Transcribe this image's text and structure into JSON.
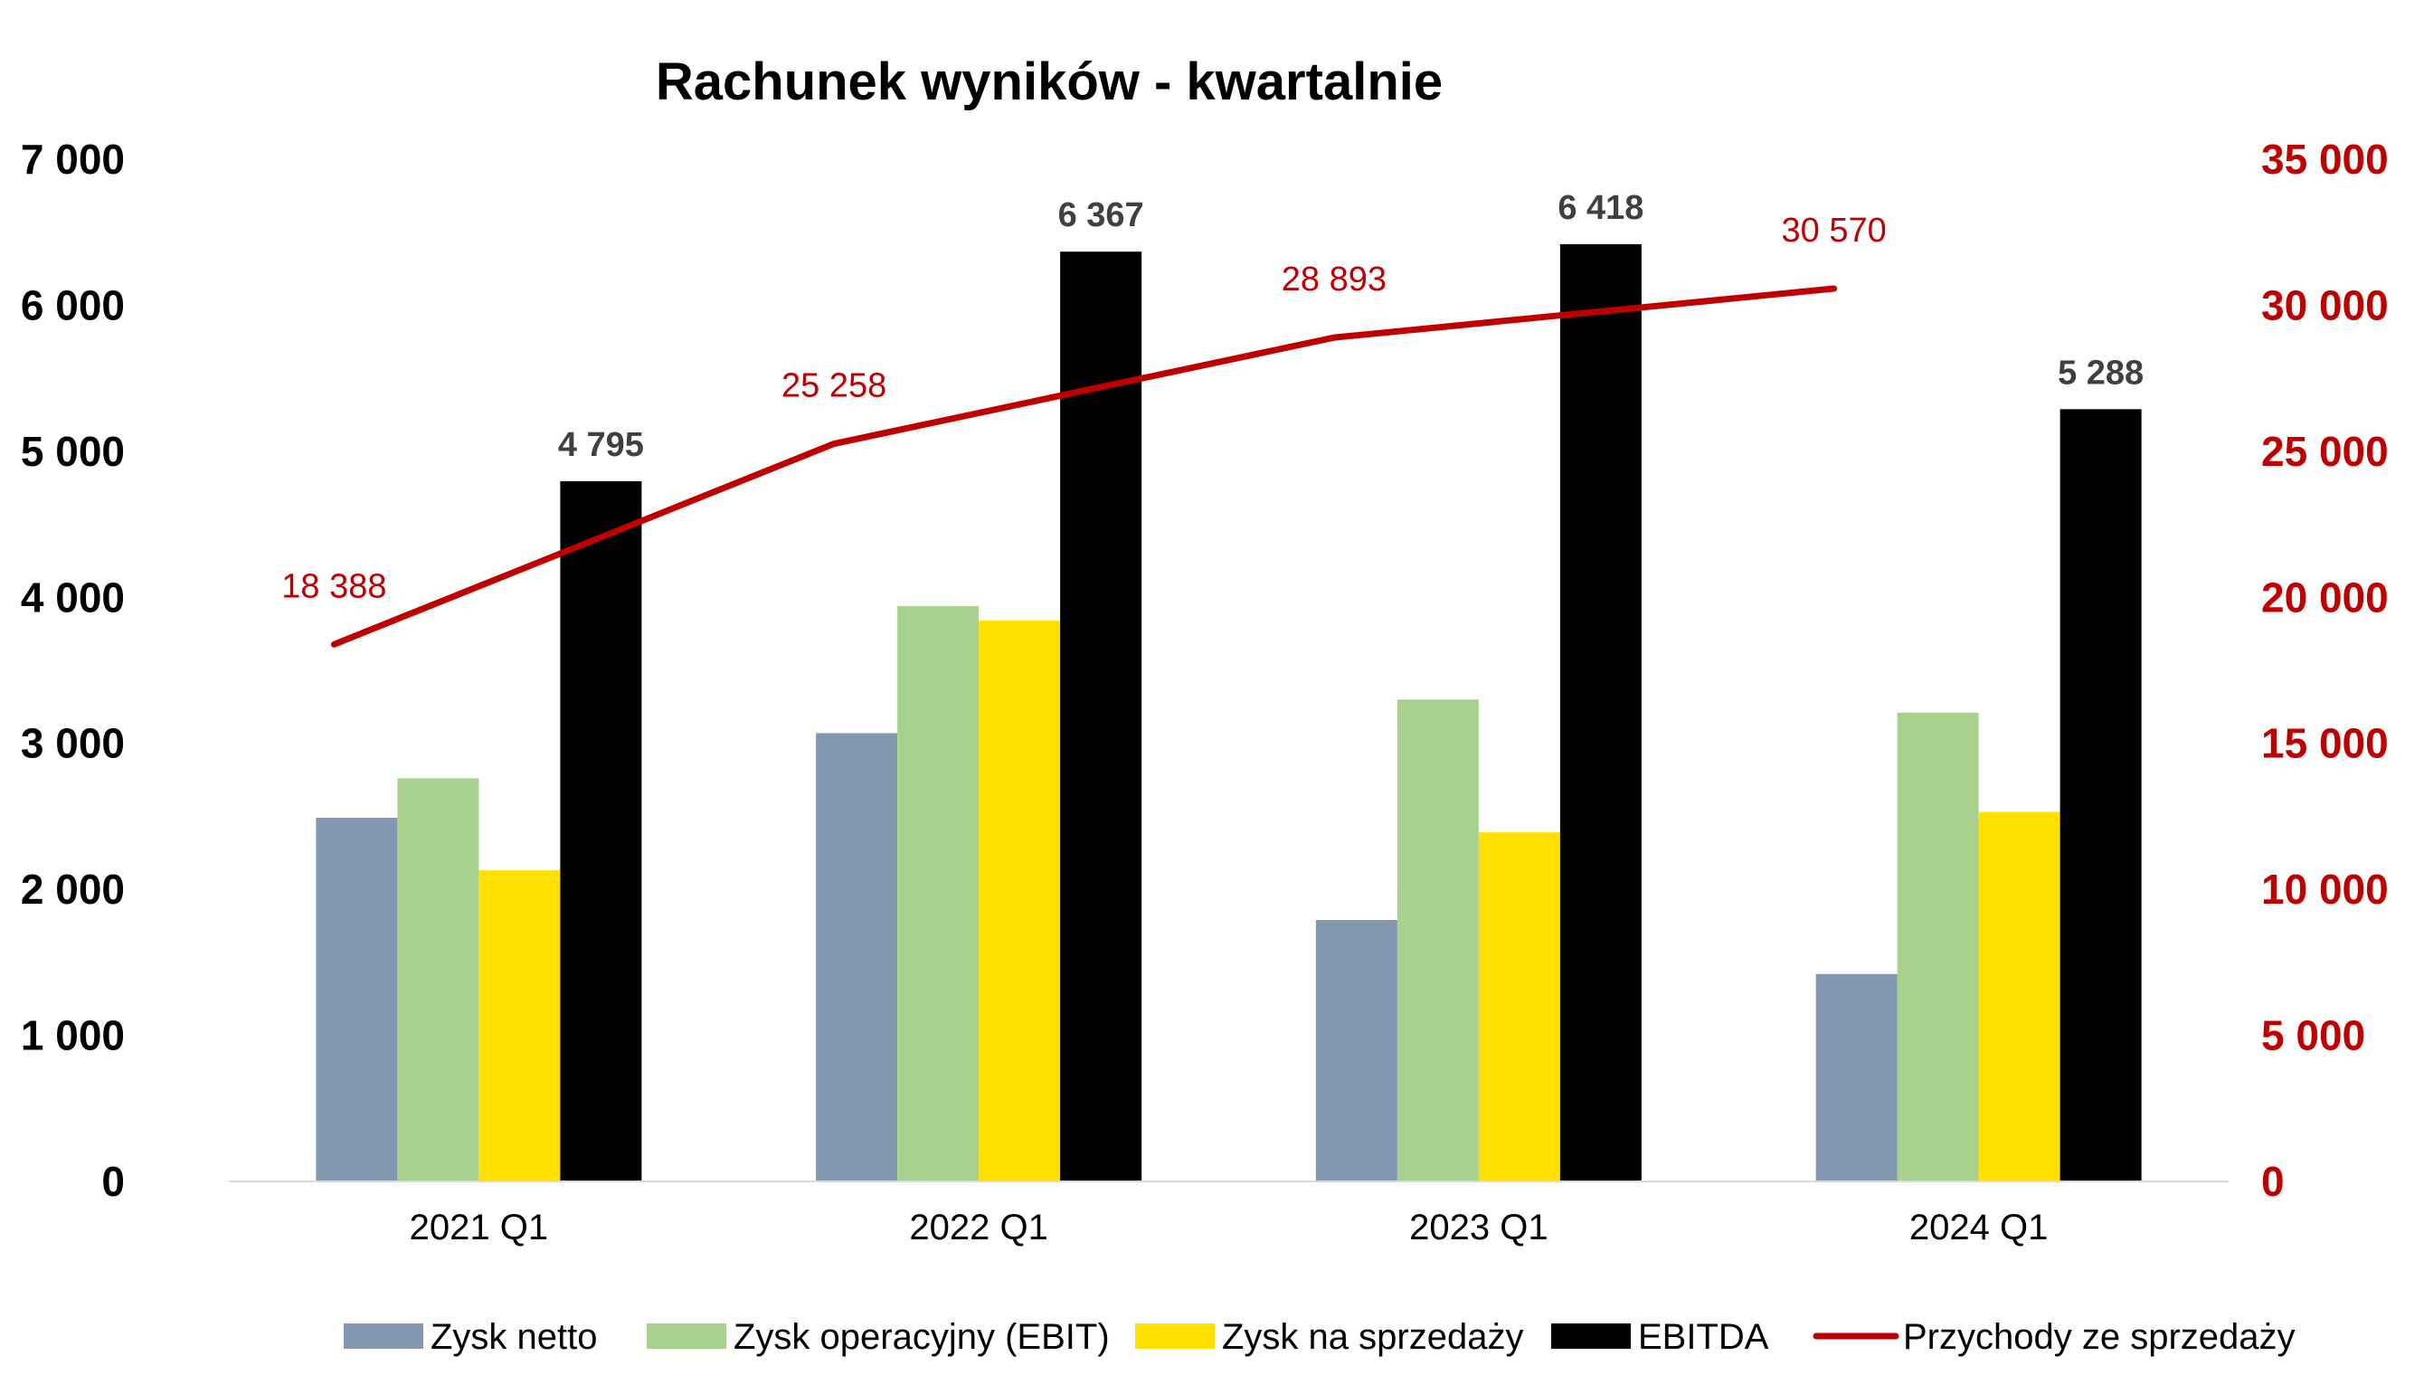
{
  "chart_data": {
    "type": "bar",
    "title": "Rachunek wyników - kwartalnie",
    "categories": [
      "2021 Q1",
      "2022 Q1",
      "2023 Q1",
      "2024 Q1"
    ],
    "y_left": {
      "range": [
        0,
        7000
      ],
      "ticks": [
        0,
        1000,
        2000,
        3000,
        4000,
        5000,
        6000,
        7000
      ],
      "tick_labels": [
        "0",
        "1 000",
        "2 000",
        "3 000",
        "4 000",
        "5 000",
        "6 000",
        "7 000"
      ],
      "color": "#000000"
    },
    "y_right": {
      "range": [
        0,
        35000
      ],
      "ticks": [
        0,
        5000,
        10000,
        15000,
        20000,
        25000,
        30000,
        35000
      ],
      "tick_labels": [
        "0",
        "5 000",
        "10 000",
        "15 000",
        "20 000",
        "25 000",
        "30 000",
        "35 000"
      ],
      "color": "#c00000"
    },
    "series": [
      {
        "name": "Zysk netto",
        "type": "bar",
        "axis": "left",
        "color": "#8497b0",
        "values": [
          2490,
          3070,
          1790,
          1420
        ]
      },
      {
        "name": "Zysk operacyjny (EBIT)",
        "type": "bar",
        "axis": "left",
        "color": "#a9d18e",
        "values": [
          2760,
          3940,
          3300,
          3210
        ]
      },
      {
        "name": "Zysk na sprzedaży",
        "type": "bar",
        "axis": "left",
        "color": "#ffe000",
        "values": [
          2130,
          3840,
          2390,
          2530
        ]
      },
      {
        "name": "EBITDA",
        "type": "bar",
        "axis": "left",
        "color": "#000000",
        "values": [
          4795,
          6367,
          6418,
          5288
        ],
        "data_labels": [
          "4 795",
          "6 367",
          "6 418",
          "5 288"
        ]
      },
      {
        "name": "Przychody ze sprzedaży",
        "type": "line",
        "axis": "right",
        "color": "#c00000",
        "values": [
          18388,
          25258,
          28893,
          30570
        ],
        "data_labels": [
          "18 388",
          "25 258",
          "28 893",
          "30 570"
        ]
      }
    ],
    "grid": false,
    "legend": "bottom"
  }
}
